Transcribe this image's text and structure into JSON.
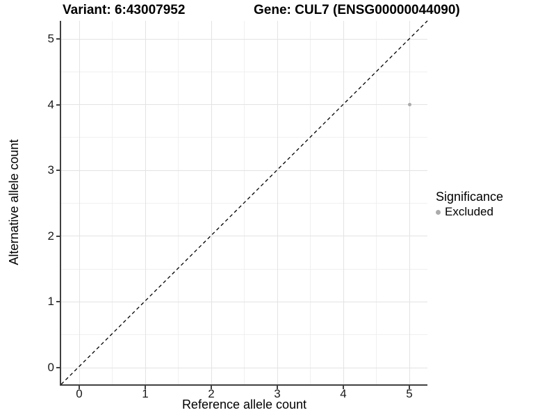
{
  "chart_data": {
    "type": "scatter",
    "title_left": "Variant: 6:43007952",
    "title_right": "Gene: CUL7 (ENSG00000044090)",
    "xlabel": "Reference allele count",
    "ylabel": "Alternative allele count",
    "x_ticks": [
      0,
      1,
      2,
      3,
      4,
      5
    ],
    "y_ticks": [
      0,
      1,
      2,
      3,
      4,
      5
    ],
    "xlim": [
      -0.27,
      5.27
    ],
    "ylim": [
      -0.27,
      5.27
    ],
    "grid": "major and minor gridlines, light gray, white background",
    "reference_line": {
      "type": "abline",
      "equation": "y = x",
      "style": "dashed",
      "color": "#000000"
    },
    "series": [
      {
        "name": "Excluded",
        "color": "#ababab",
        "points": [
          [
            5,
            4
          ]
        ]
      }
    ],
    "legend": {
      "title": "Significance",
      "position": "right",
      "entries": [
        {
          "label": "Excluded",
          "color": "#ababab"
        }
      ]
    }
  }
}
